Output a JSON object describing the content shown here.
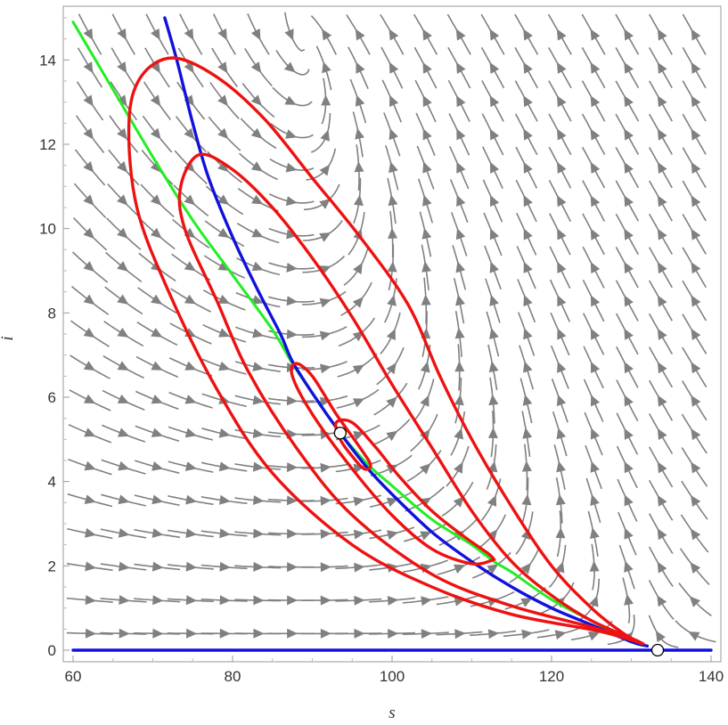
{
  "chart_data": {
    "type": "line",
    "title": "",
    "xlabel": "s",
    "ylabel": "i",
    "xlim": [
      60,
      140
    ],
    "ylim": [
      0,
      15
    ],
    "xticks": [
      60,
      80,
      100,
      120,
      140
    ],
    "yticks": [
      0,
      2,
      4,
      6,
      8,
      10,
      12,
      14
    ],
    "grid": false,
    "legend": "none",
    "colors": {
      "field": "#808080",
      "trajectory": "#ee1111",
      "green_curve": "#22ee22",
      "blue_curve": "#1111dd",
      "frame": "#999999"
    },
    "vector_field": {
      "x_range": [
        60,
        140
      ],
      "y_range": [
        0,
        15
      ],
      "x_steps": 19,
      "y_steps": 19,
      "beta": 0.0105,
      "gamma": 0.93,
      "birth": 40,
      "death": 0.3
    },
    "series": [
      {
        "id": "green",
        "points": [
          [
            60,
            14.9
          ],
          [
            65,
            13.3
          ],
          [
            70,
            11.7
          ],
          [
            75,
            10.2
          ],
          [
            80,
            8.9
          ],
          [
            85,
            7.6
          ],
          [
            87.5,
            6.8
          ],
          [
            90,
            6.1
          ],
          [
            93.5,
            5.15
          ],
          [
            97,
            4.4
          ],
          [
            100,
            3.9
          ],
          [
            105,
            3.1
          ],
          [
            110,
            2.5
          ],
          [
            112.8,
            2.1
          ],
          [
            115,
            1.85
          ],
          [
            120,
            1.2
          ],
          [
            125,
            0.7
          ],
          [
            130,
            0.2
          ],
          [
            132,
            0.1
          ]
        ]
      },
      {
        "id": "blue-curve",
        "points": [
          [
            71.5,
            15
          ],
          [
            73,
            14
          ],
          [
            75,
            12.5
          ],
          [
            77,
            11.2
          ],
          [
            80,
            9.8
          ],
          [
            83,
            8.6
          ],
          [
            86,
            7.5
          ],
          [
            87.5,
            6.85
          ],
          [
            90,
            6.1
          ],
          [
            93.5,
            5.15
          ],
          [
            97,
            4.3
          ],
          [
            100,
            3.7
          ],
          [
            105,
            2.8
          ],
          [
            110,
            2.1
          ],
          [
            115,
            1.5
          ],
          [
            120,
            1.0
          ],
          [
            125,
            0.6
          ],
          [
            130,
            0.2
          ],
          [
            132,
            0.1
          ]
        ]
      },
      {
        "id": "blue-axis",
        "points": [
          [
            60,
            0
          ],
          [
            140,
            0
          ]
        ]
      },
      {
        "id": "red-outer",
        "points": [
          [
            131.5,
            0.15
          ],
          [
            126,
            0.45
          ],
          [
            115,
            0.85
          ],
          [
            105,
            1.5
          ],
          [
            95,
            2.5
          ],
          [
            85,
            4.2
          ],
          [
            78,
            6.2
          ],
          [
            72,
            8.5
          ],
          [
            68,
            10.5
          ],
          [
            67,
            12.5
          ],
          [
            68.5,
            13.6
          ],
          [
            72.5,
            14.05
          ],
          [
            78,
            13.6
          ],
          [
            84,
            12.6
          ],
          [
            90,
            11.2
          ],
          [
            96,
            9.8
          ],
          [
            102,
            8.2
          ],
          [
            106,
            6.5
          ],
          [
            110,
            5.0
          ],
          [
            115,
            3.4
          ],
          [
            120,
            2.0
          ],
          [
            125,
            1.0
          ],
          [
            129,
            0.4
          ],
          [
            131.5,
            0.15
          ]
        ]
      },
      {
        "id": "red-middle",
        "points": [
          [
            131,
            0.2
          ],
          [
            125,
            0.55
          ],
          [
            115,
            1.05
          ],
          [
            105,
            1.8
          ],
          [
            95,
            3.2
          ],
          [
            88,
            4.8
          ],
          [
            82,
            6.6
          ],
          [
            78,
            8.3
          ],
          [
            74,
            10
          ],
          [
            73.5,
            11.0
          ],
          [
            75.8,
            11.75
          ],
          [
            80,
            11.4
          ],
          [
            85,
            10.5
          ],
          [
            90,
            9.3
          ],
          [
            95,
            7.9
          ],
          [
            100,
            6.3
          ],
          [
            105,
            4.8
          ],
          [
            110,
            3.3
          ],
          [
            115,
            2.1
          ],
          [
            120,
            1.3
          ],
          [
            125,
            0.7
          ],
          [
            131,
            0.2
          ]
        ]
      },
      {
        "id": "red-inner",
        "points": [
          [
            112.8,
            2.15
          ],
          [
            110,
            2.05
          ],
          [
            105,
            2.4
          ],
          [
            100,
            3.2
          ],
          [
            95,
            4.3
          ],
          [
            90,
            5.6
          ],
          [
            87.5,
            6.5
          ],
          [
            88,
            6.8
          ],
          [
            90,
            6.5
          ],
          [
            93,
            5.6
          ],
          [
            96,
            4.8
          ],
          [
            97.3,
            4.4
          ],
          [
            96.5,
            4.3
          ],
          [
            95,
            4.6
          ],
          [
            93.5,
            5.0
          ],
          [
            93,
            5.4
          ],
          [
            95,
            5.4
          ],
          [
            98,
            4.8
          ],
          [
            101,
            4.1
          ],
          [
            105,
            3.3
          ],
          [
            109,
            2.7
          ],
          [
            112,
            2.3
          ],
          [
            112.8,
            2.15
          ]
        ]
      }
    ],
    "equilibria": [
      {
        "s": 93.5,
        "i": 5.15
      },
      {
        "s": 133.3,
        "i": 0
      }
    ]
  }
}
